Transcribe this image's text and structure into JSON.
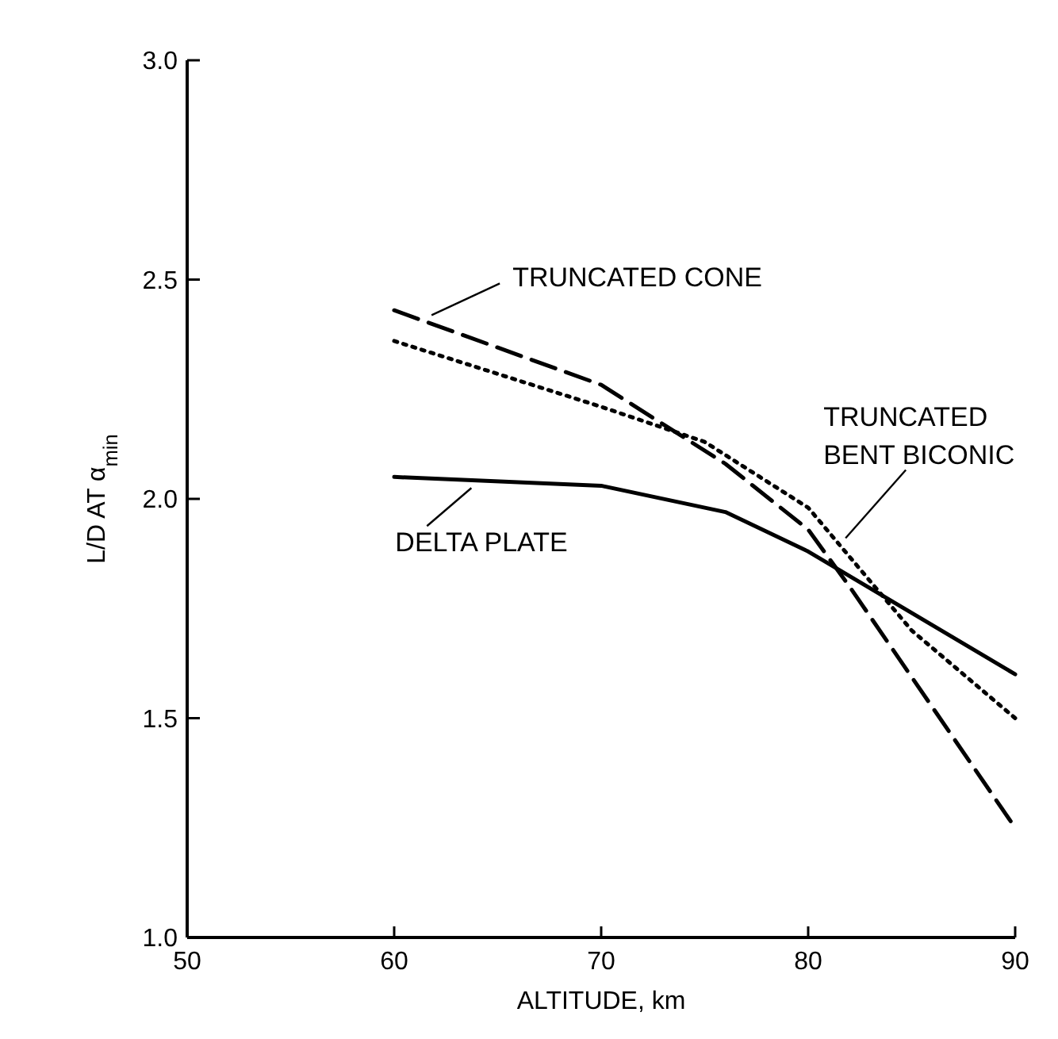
{
  "chart_data": {
    "type": "line",
    "xlabel": "ALTITUDE, km",
    "ylabel": "L/D AT α$_{min}$",
    "xlim": [
      50,
      90
    ],
    "xticks": [
      50,
      60,
      70,
      80,
      90
    ],
    "ylim": [
      1,
      3
    ],
    "yticks": [
      {
        "value": 1,
        "label": "1.0"
      },
      1.5,
      {
        "value": 2,
        "label": "2.0"
      },
      2.5,
      {
        "value": 3,
        "label": "3.0"
      }
    ],
    "grid": false,
    "marker": "none",
    "series": [
      {
        "name": "TRUNCATED CONE",
        "color": "#000000",
        "line_style": "dashed",
        "x": [
          60,
          70,
          76,
          80,
          82,
          90
        ],
        "values": [
          2.43,
          2.26,
          2.08,
          1.93,
          1.8,
          1.25
        ]
      },
      {
        "name": "TRUNCATED BENT BICONIC",
        "color": "#000000",
        "line_style": "dotted",
        "x": [
          60,
          70,
          75,
          80,
          85,
          90
        ],
        "values": [
          2.36,
          2.21,
          2.13,
          1.98,
          1.7,
          1.5
        ]
      },
      {
        "name": "DELTA PLATE",
        "color": "#000000",
        "line_style": "solid",
        "x": [
          60,
          70,
          76,
          80,
          90
        ],
        "values": [
          2.05,
          2.03,
          1.97,
          1.88,
          1.6
        ]
      }
    ]
  }
}
